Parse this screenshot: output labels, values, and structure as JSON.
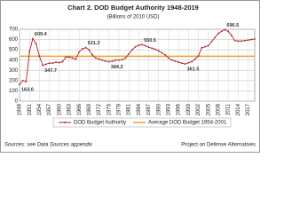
{
  "chart_data": {
    "type": "line",
    "title": "Chart 2. DOD Budget Authority 1948-2019",
    "subtitle": "(Billions of 2010 USD)",
    "source": "Sources: see Data Sources appendix",
    "credit": "Project on Defense Alternatives",
    "x": [
      1948,
      1949,
      1950,
      1951,
      1952,
      1953,
      1954,
      1955,
      1956,
      1957,
      1958,
      1959,
      1960,
      1961,
      1962,
      1963,
      1964,
      1965,
      1966,
      1967,
      1968,
      1969,
      1970,
      1971,
      1972,
      1973,
      1974,
      1975,
      1976,
      1977,
      1978,
      1979,
      1980,
      1981,
      1982,
      1983,
      1984,
      1985,
      1986,
      1987,
      1988,
      1989,
      1990,
      1991,
      1992,
      1993,
      1994,
      1995,
      1996,
      1997,
      1998,
      1999,
      2000,
      2001,
      2002,
      2003,
      2004,
      2005,
      2006,
      2007,
      2008,
      2009,
      2010,
      2011,
      2012,
      2013,
      2014,
      2015,
      2016,
      2017,
      2018,
      2019
    ],
    "series": [
      {
        "name": "DOD Budget Authority",
        "color": "#b22222",
        "values": [
          163.0,
          200,
          190,
          480,
          609.4,
          560,
          440,
          347.7,
          360,
          370,
          370,
          380,
          375,
          385,
          430,
          430,
          420,
          410,
          480,
          510,
          521.3,
          500,
          450,
          420,
          410,
          400,
          390,
          384.2,
          390,
          400,
          400,
          405,
          420,
          460,
          500,
          530,
          545,
          550.5,
          540,
          525,
          515,
          505,
          490,
          470,
          450,
          420,
          400,
          390,
          380,
          370,
          361.5,
          375,
          385,
          410,
          440,
          520,
          530,
          540,
          580,
          620,
          660,
          680,
          696.5,
          680,
          640,
          590,
          585,
          585,
          590,
          595,
          600,
          605
        ],
        "value_labels": [
          "163.0",
          null,
          null,
          null,
          "609.4",
          null,
          null,
          "347.7",
          null,
          null,
          null,
          null,
          null,
          null,
          null,
          null,
          null,
          null,
          null,
          null,
          "521.3",
          null,
          null,
          null,
          null,
          null,
          null,
          "384.2",
          null,
          null,
          null,
          null,
          null,
          null,
          null,
          null,
          null,
          "550.5",
          null,
          null,
          null,
          null,
          null,
          null,
          null,
          null,
          null,
          null,
          null,
          null,
          "361.5",
          null,
          null,
          null,
          null,
          null,
          null,
          null,
          null,
          null,
          null,
          null,
          "696.5",
          null,
          null,
          null,
          null,
          null,
          null,
          null,
          null,
          null
        ]
      },
      {
        "name": "Average DOD Budget 1954-2001",
        "color": "#f0a030",
        "value": 437
      }
    ],
    "xlim": [
      1948,
      2019
    ],
    "xticks": [
      1948,
      1951,
      1954,
      1957,
      1960,
      1963,
      1966,
      1969,
      1972,
      1975,
      1978,
      1981,
      1984,
      1987,
      1990,
      1993,
      1996,
      1999,
      2002,
      2005,
      2008,
      2011,
      2014,
      2017
    ],
    "ylim": [
      0,
      700
    ],
    "yticks": [
      0,
      100,
      200,
      300,
      400,
      500,
      600,
      700
    ],
    "grid": true
  }
}
